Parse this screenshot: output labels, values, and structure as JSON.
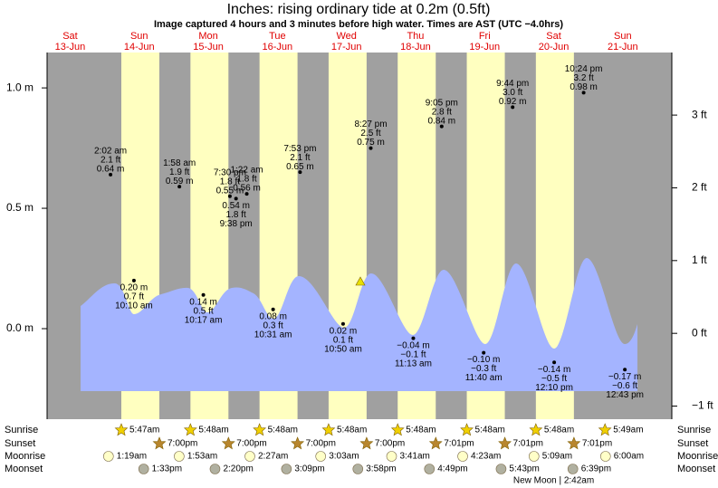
{
  "header": {
    "title": "Inches: rising  ordinary tide at 0.2m (0.5ft)",
    "subtitle": "Image captured 4 hours and 3 minutes before high water. Times are AST (UTC −4.0hrs)"
  },
  "chart_data": {
    "type": "tide",
    "days": [
      {
        "name": "Sat",
        "date": "13-Jun"
      },
      {
        "name": "Sun",
        "date": "14-Jun"
      },
      {
        "name": "Mon",
        "date": "15-Jun"
      },
      {
        "name": "Tue",
        "date": "16-Jun"
      },
      {
        "name": "Wed",
        "date": "17-Jun"
      },
      {
        "name": "Thu",
        "date": "18-Jun"
      },
      {
        "name": "Fri",
        "date": "19-Jun"
      },
      {
        "name": "Sat",
        "date": "20-Jun"
      },
      {
        "name": "Sun",
        "date": "21-Jun"
      }
    ],
    "ylim": [
      -0.376,
      1.147
    ],
    "yticks": [
      {
        "value": 0,
        "label": "0.0 m"
      },
      {
        "value": 0.5,
        "label": "0.5 m"
      },
      {
        "value": 1,
        "label": "1.0 m"
      }
    ],
    "y2lim": [
      -1.18,
      3.86
    ],
    "y2ticks": [
      {
        "value": -1,
        "label": "−1 ft"
      },
      {
        "value": 0,
        "label": "0 ft"
      },
      {
        "value": 1,
        "label": "1 ft"
      },
      {
        "value": 2,
        "label": "2 ft"
      },
      {
        "value": 3,
        "label": "3 ft"
      }
    ],
    "extremes": [
      {
        "day": 1,
        "time": "2:02 am",
        "ft": "2.1 ft",
        "m": 0.64,
        "m_label": "0.64 m"
      },
      {
        "day": 1,
        "time": "10:10 am",
        "ft": "0.7 ft",
        "m": 0.2,
        "m_label": "0.20 m"
      },
      {
        "day": 2,
        "time": "1:58 am",
        "ft": "1.9 ft",
        "m": 0.59,
        "m_label": "0.59 m"
      },
      {
        "day": 2,
        "time": "10:17 am",
        "ft": "0.5 ft",
        "m": 0.14,
        "m_label": "0.14 m"
      },
      {
        "day": 2,
        "time": "7:30 pm",
        "ft": "1.8 ft",
        "m": 0.55,
        "m_label": "0.55 m"
      },
      {
        "day": 2,
        "time": "9:38 pm",
        "ft": "1.8 ft",
        "m": 0.54,
        "m_label": "0.54 m"
      },
      {
        "day": 3,
        "time": "1:22 am",
        "ft": "1.8 ft",
        "m": 0.56,
        "m_label": "0.56 m"
      },
      {
        "day": 3,
        "time": "10:31 am",
        "ft": "0.3 ft",
        "m": 0.08,
        "m_label": "0.08 m"
      },
      {
        "day": 3,
        "time": "7:53 pm",
        "ft": "2.1 ft",
        "m": 0.65,
        "m_label": "0.65 m"
      },
      {
        "day": 4,
        "time": "10:50 am",
        "ft": "0.1 ft",
        "m": 0.02,
        "m_label": "0.02 m"
      },
      {
        "day": 4,
        "time": "8:27 pm",
        "ft": "2.5 ft",
        "m": 0.75,
        "m_label": "0.75 m"
      },
      {
        "day": 5,
        "time": "11:13 am",
        "ft": "−0.1 ft",
        "m": -0.04,
        "m_label": "−0.04 m"
      },
      {
        "day": 5,
        "time": "9:05 pm",
        "ft": "2.8 ft",
        "m": 0.84,
        "m_label": "0.84 m"
      },
      {
        "day": 6,
        "time": "11:40 am",
        "ft": "−0.3 ft",
        "m": -0.1,
        "m_label": "−0.10 m"
      },
      {
        "day": 6,
        "time": "9:44 pm",
        "ft": "3.0 ft",
        "m": 0.92,
        "m_label": "0.92 m"
      },
      {
        "day": 7,
        "time": "12:10 pm",
        "ft": "−0.5 ft",
        "m": -0.14,
        "m_label": "−0.14 m"
      },
      {
        "day": 7,
        "time": "10:24 pm",
        "ft": "3.2 ft",
        "m": 0.98,
        "m_label": "0.98 m"
      },
      {
        "day": 8,
        "time": "12:43 pm",
        "ft": "−0.6 ft",
        "m": -0.17,
        "m_label": "−0.17 m"
      }
    ],
    "night_color": "#a0a0a0",
    "day_color": "#ffffc0",
    "tide_color": "#a4b4ff",
    "day_label_color": "#e00000"
  },
  "almanac": {
    "row_labels": [
      "Sunrise",
      "Sunset",
      "Moonrise",
      "Moonset"
    ],
    "sunrise": [
      {
        "day": 1,
        "time": "5:47am"
      },
      {
        "day": 2,
        "time": "5:48am"
      },
      {
        "day": 3,
        "time": "5:48am"
      },
      {
        "day": 4,
        "time": "5:48am"
      },
      {
        "day": 5,
        "time": "5:48am"
      },
      {
        "day": 6,
        "time": "5:48am"
      },
      {
        "day": 7,
        "time": "5:48am"
      },
      {
        "day": 8,
        "time": "5:49am"
      }
    ],
    "sunset": [
      {
        "day": 1,
        "time": "7:00pm"
      },
      {
        "day": 2,
        "time": "7:00pm"
      },
      {
        "day": 3,
        "time": "7:00pm"
      },
      {
        "day": 4,
        "time": "7:00pm"
      },
      {
        "day": 5,
        "time": "7:01pm"
      },
      {
        "day": 6,
        "time": "7:01pm"
      },
      {
        "day": 7,
        "time": "7:01pm"
      }
    ],
    "moonrise": [
      {
        "day": 1,
        "time": "1:19am"
      },
      {
        "day": 2,
        "time": "1:53am"
      },
      {
        "day": 3,
        "time": "2:27am"
      },
      {
        "day": 4,
        "time": "3:03am"
      },
      {
        "day": 5,
        "time": "3:41am"
      },
      {
        "day": 6,
        "time": "4:23am"
      },
      {
        "day": 7,
        "time": "5:09am"
      },
      {
        "day": 8,
        "time": "6:00am"
      }
    ],
    "moonset": [
      {
        "day": 1,
        "time": "1:33pm"
      },
      {
        "day": 2,
        "time": "2:20pm"
      },
      {
        "day": 3,
        "time": "3:09pm"
      },
      {
        "day": 4,
        "time": "3:58pm"
      },
      {
        "day": 5,
        "time": "4:49pm"
      },
      {
        "day": 6,
        "time": "5:43pm"
      },
      {
        "day": 7,
        "time": "6:39pm"
      }
    ],
    "moon_phase": {
      "day": 7,
      "text": "New Moon | 2:42am"
    }
  }
}
